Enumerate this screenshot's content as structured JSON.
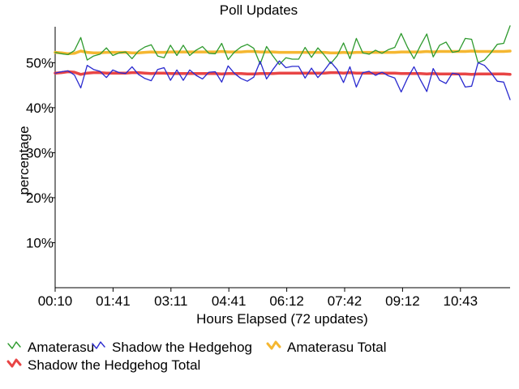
{
  "chart_data": {
    "type": "line",
    "title": "Poll Updates",
    "xlabel": "Hours Elapsed (72 updates)",
    "ylabel": "percentage",
    "x_tick_labels": [
      "00:10",
      "01:41",
      "03:11",
      "04:41",
      "06:12",
      "07:42",
      "09:12",
      "10:43"
    ],
    "y_ticks": [
      10,
      20,
      30,
      40,
      50
    ],
    "y_tick_labels": [
      "10%",
      "20%",
      "30%",
      "40%",
      "50%"
    ],
    "ylim": [
      0,
      58
    ],
    "num_updates": 72,
    "series": [
      {
        "name": "Amaterasu",
        "color": "#2e9a2e",
        "values": [
          52.3,
          52.0,
          51.8,
          52.7,
          55.6,
          50.6,
          51.5,
          51.9,
          53.3,
          51.6,
          52.2,
          52.4,
          50.9,
          52.6,
          53.5,
          54.0,
          51.5,
          51.1,
          53.9,
          51.6,
          53.9,
          51.6,
          52.8,
          53.6,
          52.1,
          52.0,
          54.3,
          50.7,
          52.4,
          53.5,
          54.1,
          53.2,
          49.7,
          53.6,
          51.5,
          49.6,
          51.1,
          50.8,
          50.8,
          53.4,
          51.2,
          53.3,
          51.7,
          49.8,
          51.5,
          54.4,
          50.9,
          55.4,
          52.2,
          51.9,
          52.8,
          52.1,
          52.9,
          53.4,
          56.5,
          53.4,
          50.9,
          53.8,
          56.4,
          51.3,
          53.9,
          54.6,
          52.3,
          52.6,
          55.4,
          55.2,
          50.0,
          50.6,
          52.2,
          54.1,
          54.3,
          58.2
        ]
      },
      {
        "name": "Shadow the Hedgehog",
        "color": "#2a2acf",
        "values": [
          47.7,
          48.0,
          48.2,
          47.3,
          44.4,
          49.4,
          48.5,
          48.1,
          46.7,
          48.4,
          47.8,
          47.6,
          49.1,
          47.4,
          46.5,
          46.0,
          48.5,
          48.9,
          46.1,
          48.4,
          46.1,
          48.4,
          47.2,
          46.4,
          47.9,
          48.0,
          45.7,
          49.3,
          47.6,
          46.5,
          45.9,
          46.8,
          50.3,
          46.4,
          48.5,
          50.4,
          48.9,
          49.2,
          49.2,
          46.6,
          48.8,
          46.7,
          48.3,
          50.2,
          48.5,
          45.6,
          49.1,
          44.6,
          47.8,
          48.1,
          47.2,
          47.9,
          47.1,
          46.6,
          43.5,
          46.6,
          49.1,
          46.2,
          43.6,
          48.7,
          46.1,
          45.4,
          47.7,
          47.4,
          44.6,
          44.8,
          50.0,
          49.4,
          47.8,
          45.9,
          45.7,
          41.8
        ]
      },
      {
        "name": "Amaterasu Total",
        "color": "#f5b731",
        "values": [
          52.3,
          52.2,
          52.0,
          52.1,
          52.6,
          52.3,
          52.2,
          52.2,
          52.3,
          52.3,
          52.3,
          52.3,
          52.2,
          52.2,
          52.3,
          52.4,
          52.3,
          52.3,
          52.4,
          52.4,
          52.4,
          52.4,
          52.4,
          52.4,
          52.4,
          52.4,
          52.5,
          52.4,
          52.4,
          52.4,
          52.5,
          52.5,
          52.4,
          52.4,
          52.4,
          52.3,
          52.3,
          52.3,
          52.3,
          52.3,
          52.3,
          52.3,
          52.3,
          52.2,
          52.2,
          52.3,
          52.2,
          52.3,
          52.3,
          52.3,
          52.3,
          52.3,
          52.3,
          52.3,
          52.4,
          52.4,
          52.4,
          52.4,
          52.5,
          52.4,
          52.5,
          52.5,
          52.5,
          52.5,
          52.5,
          52.6,
          52.5,
          52.5,
          52.5,
          52.5,
          52.5,
          52.6
        ]
      },
      {
        "name": "Shadow the Hedgehog Total",
        "color": "#e84545",
        "values": [
          47.7,
          47.8,
          48.0,
          47.9,
          47.4,
          47.7,
          47.8,
          47.8,
          47.7,
          47.7,
          47.7,
          47.7,
          47.8,
          47.8,
          47.7,
          47.6,
          47.7,
          47.7,
          47.6,
          47.6,
          47.6,
          47.6,
          47.6,
          47.6,
          47.6,
          47.6,
          47.5,
          47.6,
          47.6,
          47.6,
          47.5,
          47.5,
          47.6,
          47.6,
          47.6,
          47.7,
          47.7,
          47.7,
          47.7,
          47.7,
          47.7,
          47.7,
          47.7,
          47.8,
          47.8,
          47.7,
          47.8,
          47.7,
          47.7,
          47.7,
          47.7,
          47.7,
          47.7,
          47.7,
          47.6,
          47.6,
          47.6,
          47.6,
          47.5,
          47.6,
          47.5,
          47.5,
          47.5,
          47.5,
          47.5,
          47.4,
          47.5,
          47.5,
          47.5,
          47.5,
          47.5,
          47.4
        ]
      }
    ],
    "legend_placement": "bottom",
    "grid": false
  }
}
